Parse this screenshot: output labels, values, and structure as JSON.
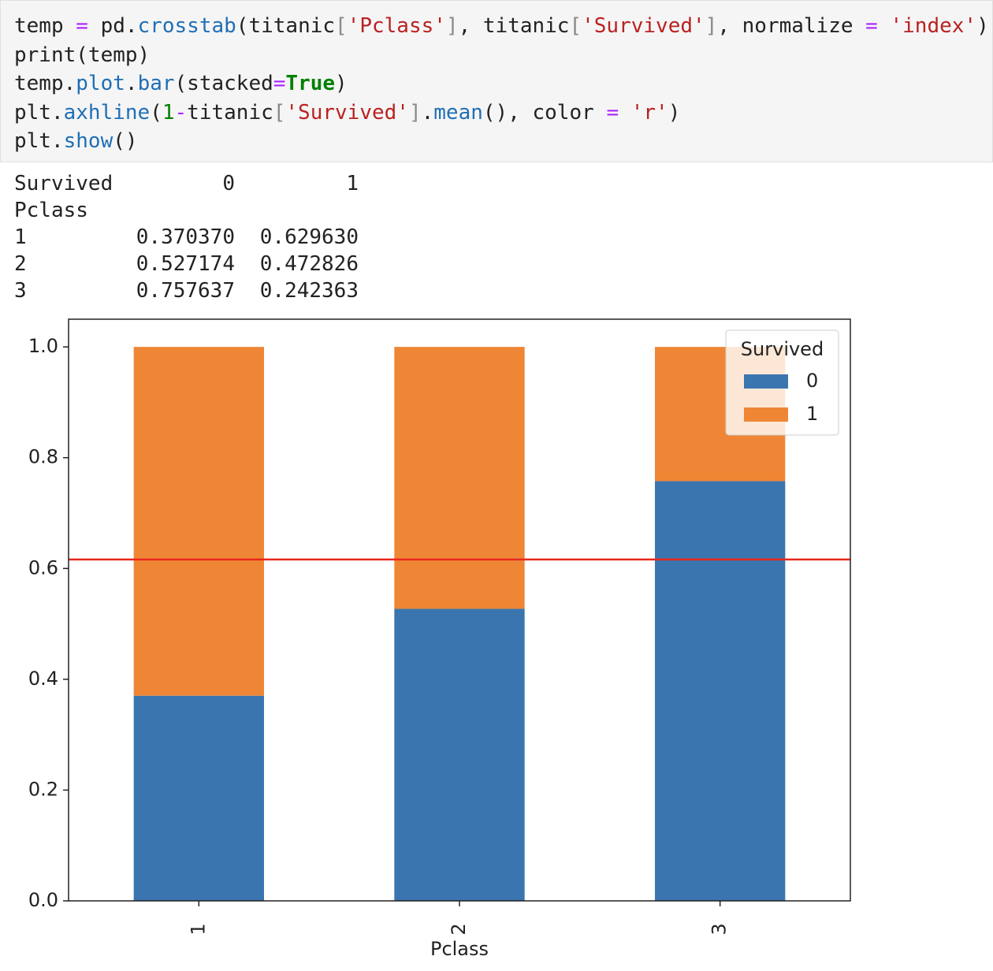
{
  "code": [
    "temp = pd.crosstab(titanic['Pclass'], titanic['Survived'], normalize = 'index')",
    "print(temp)",
    "temp.plot.bar(stacked=True)",
    "plt.axhline(1-titanic['Survived'].mean(), color = 'r')",
    "plt.show()"
  ],
  "output": {
    "columns_name": "Survived",
    "columns": [
      "0",
      "1"
    ],
    "index_name": "Pclass",
    "rows": [
      [
        "1",
        "0.370370",
        "0.629630"
      ],
      [
        "2",
        "0.527174",
        "0.472826"
      ],
      [
        "3",
        "0.757637",
        "0.242363"
      ]
    ]
  },
  "chart_data": {
    "type": "stacked_bar",
    "categories": [
      "1",
      "2",
      "3"
    ],
    "xlabel": "Pclass",
    "series": [
      {
        "name": "0",
        "color": "#3b75af",
        "values": [
          0.37037,
          0.527174,
          0.757637
        ]
      },
      {
        "name": "1",
        "color": "#ef8636",
        "values": [
          0.62963,
          0.472826,
          0.242363
        ]
      }
    ],
    "ylim": [
      0,
      1.05
    ],
    "yticks": [
      {
        "value": 0,
        "label": "0.0"
      },
      0.2,
      0.4,
      0.6,
      0.8,
      {
        "value": 1,
        "label": "1.0"
      }
    ],
    "hline": {
      "value": 0.616162,
      "color": "#e8281e"
    },
    "legend": {
      "title": "Survived",
      "loc": "upper right"
    }
  }
}
